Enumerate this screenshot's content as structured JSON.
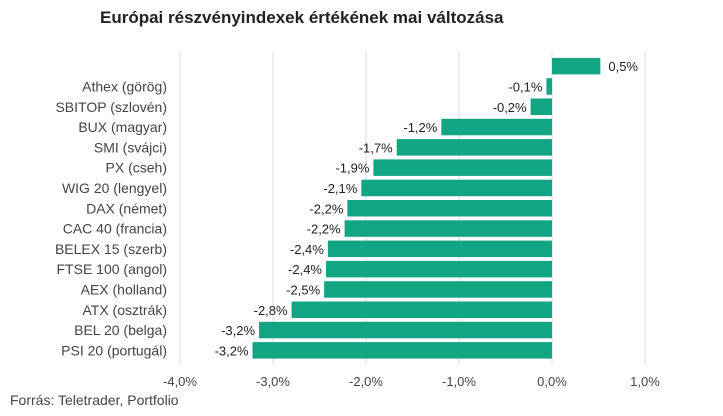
{
  "chart_data": {
    "type": "bar",
    "orientation": "horizontal",
    "title": "Európai részvényindexek értékének mai változása",
    "xlabel": "",
    "ylabel": "",
    "xlim": [
      -4.0,
      1.0
    ],
    "x_ticks": [
      -4.0,
      -3.0,
      -2.0,
      -1.0,
      0.0,
      1.0
    ],
    "x_tick_labels": [
      "-4,0%",
      "-3,0%",
      "-2,0%",
      "-1,0%",
      "0,0%",
      "1,0%"
    ],
    "grid": "vertical",
    "legend": "none",
    "bar_color": "#12a584",
    "categories": [
      "",
      "Athex (görög)",
      "SBITOP (szlovén)",
      "BUX (magyar)",
      "SMI (svájci)",
      "PX (cseh)",
      "WIG 20 (lengyel)",
      "DAX (német)",
      "CAC 40 (francia)",
      "BELEX 15 (szerb)",
      "FTSE 100 (angol)",
      "AEX (holland)",
      "ATX (osztrák)",
      "BEL 20 (belga)",
      "PSI 20 (portugál)"
    ],
    "values": [
      0.52,
      -0.06,
      -0.23,
      -1.19,
      -1.67,
      -1.92,
      -2.05,
      -2.2,
      -2.23,
      -2.41,
      -2.43,
      -2.45,
      -2.8,
      -3.15,
      -3.22
    ],
    "value_labels": [
      "0,5%",
      "-0,1%",
      "-0,2%",
      "-1,2%",
      "-1,7%",
      "-1,9%",
      "-2,1%",
      "-2,2%",
      "-2,2%",
      "-2,4%",
      "-2,4%",
      "-2,5%",
      "-2,8%",
      "-3,2%",
      "-3,2%"
    ]
  },
  "source": "Forrás: Teletrader, Portfolio"
}
